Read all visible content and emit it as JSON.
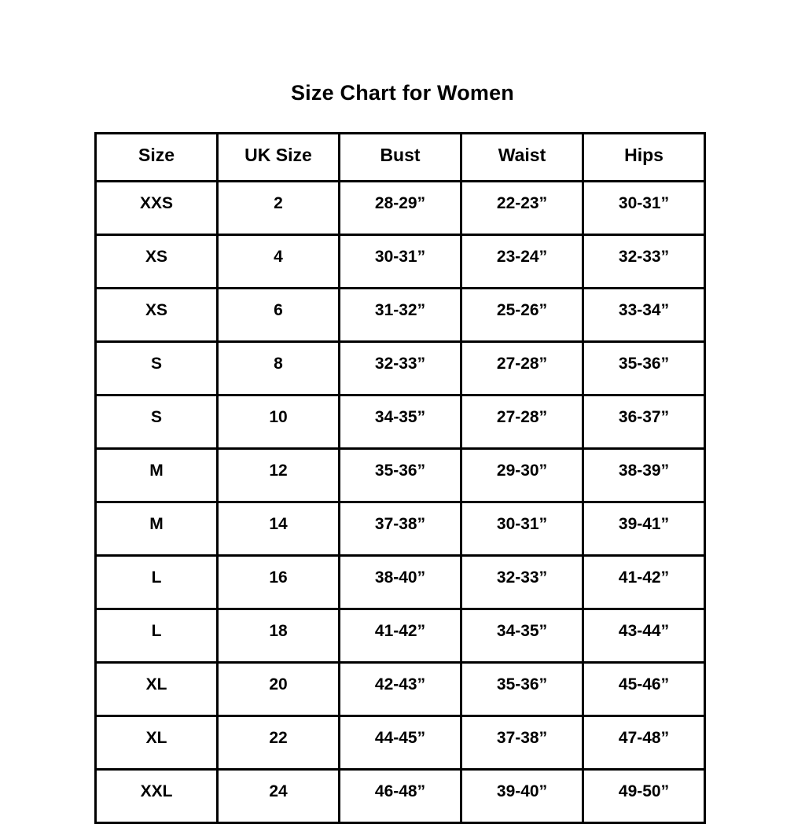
{
  "title": "Size Chart for Women",
  "table": {
    "headers": [
      "Size",
      "UK Size",
      "Bust",
      "Waist",
      "Hips"
    ],
    "rows": [
      [
        "XXS",
        "2",
        "28-29”",
        "22-23”",
        "30-31”"
      ],
      [
        "XS",
        "4",
        "30-31”",
        "23-24”",
        "32-33”"
      ],
      [
        "XS",
        "6",
        "31-32”",
        "25-26”",
        "33-34”"
      ],
      [
        "S",
        "8",
        "32-33”",
        "27-28”",
        "35-36”"
      ],
      [
        "S",
        "10",
        "34-35”",
        "27-28”",
        "36-37”"
      ],
      [
        "M",
        "12",
        "35-36”",
        "29-30”",
        "38-39”"
      ],
      [
        "M",
        "14",
        "37-38”",
        "30-31”",
        "39-41”"
      ],
      [
        "L",
        "16",
        "38-40”",
        "32-33”",
        "41-42”"
      ],
      [
        "L",
        "18",
        "41-42”",
        "34-35”",
        "43-44”"
      ],
      [
        "XL",
        "20",
        "42-43”",
        "35-36”",
        "45-46”"
      ],
      [
        "XL",
        "22",
        "44-45”",
        "37-38”",
        "47-48”"
      ],
      [
        "XXL",
        "24",
        "46-48”",
        "39-40”",
        "49-50”"
      ]
    ]
  },
  "chart_data": {
    "type": "table",
    "title": "Size Chart for Women",
    "columns": [
      "Size",
      "UK Size",
      "Bust",
      "Waist",
      "Hips"
    ],
    "rows": [
      [
        "XXS",
        "2",
        "28-29”",
        "22-23”",
        "30-31”"
      ],
      [
        "XS",
        "4",
        "30-31”",
        "23-24”",
        "32-33”"
      ],
      [
        "XS",
        "6",
        "31-32”",
        "25-26”",
        "33-34”"
      ],
      [
        "S",
        "8",
        "32-33”",
        "27-28”",
        "35-36”"
      ],
      [
        "S",
        "10",
        "34-35”",
        "27-28”",
        "36-37”"
      ],
      [
        "M",
        "12",
        "35-36”",
        "29-30”",
        "38-39”"
      ],
      [
        "M",
        "14",
        "37-38”",
        "30-31”",
        "39-41”"
      ],
      [
        "L",
        "16",
        "38-40”",
        "32-33”",
        "41-42”"
      ],
      [
        "L",
        "18",
        "41-42”",
        "34-35”",
        "43-44”"
      ],
      [
        "XL",
        "20",
        "42-43”",
        "35-36”",
        "45-46”"
      ],
      [
        "XL",
        "22",
        "44-45”",
        "37-38”",
        "47-48”"
      ],
      [
        "XXL",
        "24",
        "46-48”",
        "39-40”",
        "49-50”"
      ]
    ]
  },
  "colors": {
    "text": "#000000",
    "border": "#000000",
    "background": "#ffffff"
  }
}
